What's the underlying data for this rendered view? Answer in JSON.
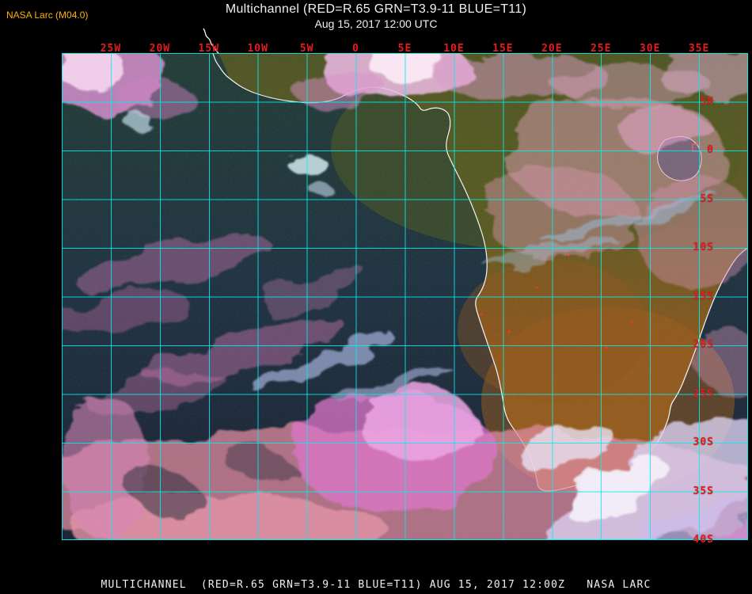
{
  "header": {
    "agency_tag": "NASA Larc (M04.0)",
    "title_line1": "Multichannel (RED=R.65 GRN=T3.9-11 BLUE=T11)",
    "title_line2": "Aug 15, 2017 12:00 UTC"
  },
  "map": {
    "top_axis_labels": [
      "25W",
      "20W",
      "15W",
      "10W",
      "5W",
      "0",
      "5E",
      "10E",
      "15E",
      "20E",
      "25E",
      "30E",
      "35E"
    ],
    "right_axis_labels": [
      "5N",
      "0",
      "5S",
      "10S",
      "15S",
      "20S",
      "25S",
      "30S",
      "35S",
      "40S"
    ],
    "features": [
      "coastline-africa",
      "lake-victoria",
      "red-box-marker",
      "fire-hotspots"
    ],
    "colors": {
      "grid": "#00f0f0",
      "axis_labels": "#e81c1c",
      "coastline": "#ffffff",
      "ocean_dark": "#1c3a36",
      "land_olive": "#565a1e",
      "land_brown": "#8a561c",
      "cloud_pink": "#e48fd0",
      "cloud_lavender": "#c9c2ee",
      "cloud_salmon": "#e08f9f",
      "marker_red": "#e81c1c"
    }
  },
  "footer": {
    "caption": "MULTICHANNEL  (RED=R.65 GRN=T3.9-11 BLUE=T11) AUG 15, 2017 12:00Z   NASA LARC"
  }
}
